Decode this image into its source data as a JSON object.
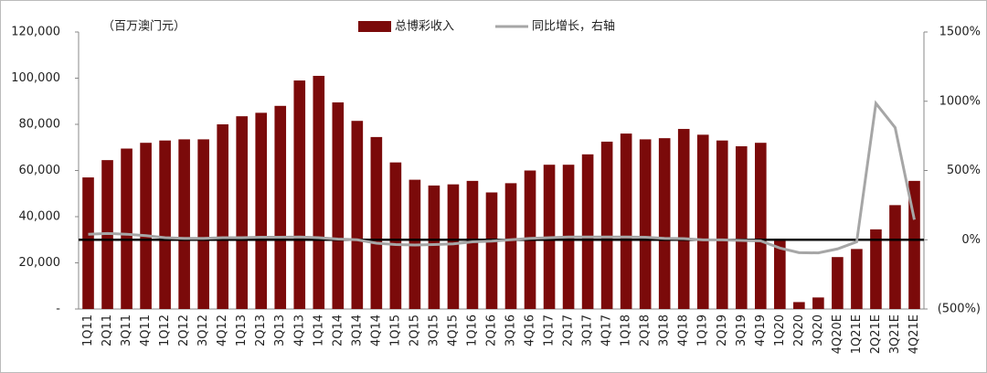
{
  "chart_data": {
    "type": "bar-line",
    "annotation": "（百万澳门元）",
    "categories": [
      "1Q11",
      "2Q11",
      "3Q11",
      "4Q11",
      "1Q12",
      "2Q12",
      "3Q12",
      "4Q12",
      "1Q13",
      "2Q13",
      "3Q13",
      "4Q13",
      "1Q14",
      "2Q14",
      "3Q14",
      "4Q14",
      "1Q15",
      "2Q15",
      "3Q15",
      "4Q15",
      "1Q16",
      "2Q16",
      "3Q16",
      "4Q16",
      "1Q17",
      "2Q17",
      "3Q17",
      "4Q17",
      "1Q18",
      "2Q18",
      "3Q18",
      "4Q18",
      "1Q19",
      "2Q19",
      "3Q19",
      "4Q19",
      "1Q20",
      "2Q20",
      "3Q20",
      "4Q20E",
      "1Q21E",
      "2Q21E",
      "3Q21E",
      "4Q21E"
    ],
    "series": [
      {
        "name": "总博彩收入",
        "type": "bar",
        "color": "#7b0a0a",
        "values": [
          57000,
          64500,
          69500,
          72000,
          73000,
          73500,
          73500,
          80000,
          83500,
          85000,
          88000,
          99000,
          101000,
          89500,
          81500,
          74500,
          63500,
          56000,
          53500,
          54000,
          55500,
          50500,
          54500,
          60000,
          62500,
          62500,
          67000,
          72500,
          76000,
          73500,
          74000,
          78000,
          75500,
          73000,
          70500,
          72000,
          30000,
          3000,
          5000,
          22500,
          26000,
          34500,
          45000,
          55500
        ]
      },
      {
        "name": "同比增长，右轴",
        "type": "line",
        "axis": "y2",
        "color": "#a6a6a6",
        "values": [
          40,
          45,
          40,
          30,
          15,
          10,
          10,
          15,
          15,
          18,
          18,
          20,
          15,
          5,
          0,
          -25,
          -35,
          -38,
          -35,
          -30,
          -15,
          -10,
          0,
          10,
          15,
          20,
          20,
          20,
          20,
          18,
          10,
          8,
          -1,
          -1,
          -5,
          -8,
          -60,
          -93,
          -95,
          -66,
          -15,
          985,
          810,
          145
        ]
      }
    ],
    "ylim": [
      0,
      120000
    ],
    "yticks": [
      {
        "value": 0,
        "label": "-"
      },
      {
        "value": 20000,
        "label": "20,000"
      },
      {
        "value": 40000,
        "label": "40,000"
      },
      {
        "value": 60000,
        "label": "60,000"
      },
      {
        "value": 80000,
        "label": "80,000"
      },
      {
        "value": 100000,
        "label": "100,000"
      },
      {
        "value": 120000,
        "label": "120,000"
      }
    ],
    "y2lim": [
      -500,
      1500
    ],
    "y2ticks": [
      {
        "value": -500,
        "label": "(500%)"
      },
      {
        "value": 0,
        "label": "0%"
      },
      {
        "value": 500,
        "label": "500%"
      },
      {
        "value": 1000,
        "label": "1000%"
      },
      {
        "value": 1500,
        "label": "1500%"
      }
    ],
    "legend": "top"
  }
}
